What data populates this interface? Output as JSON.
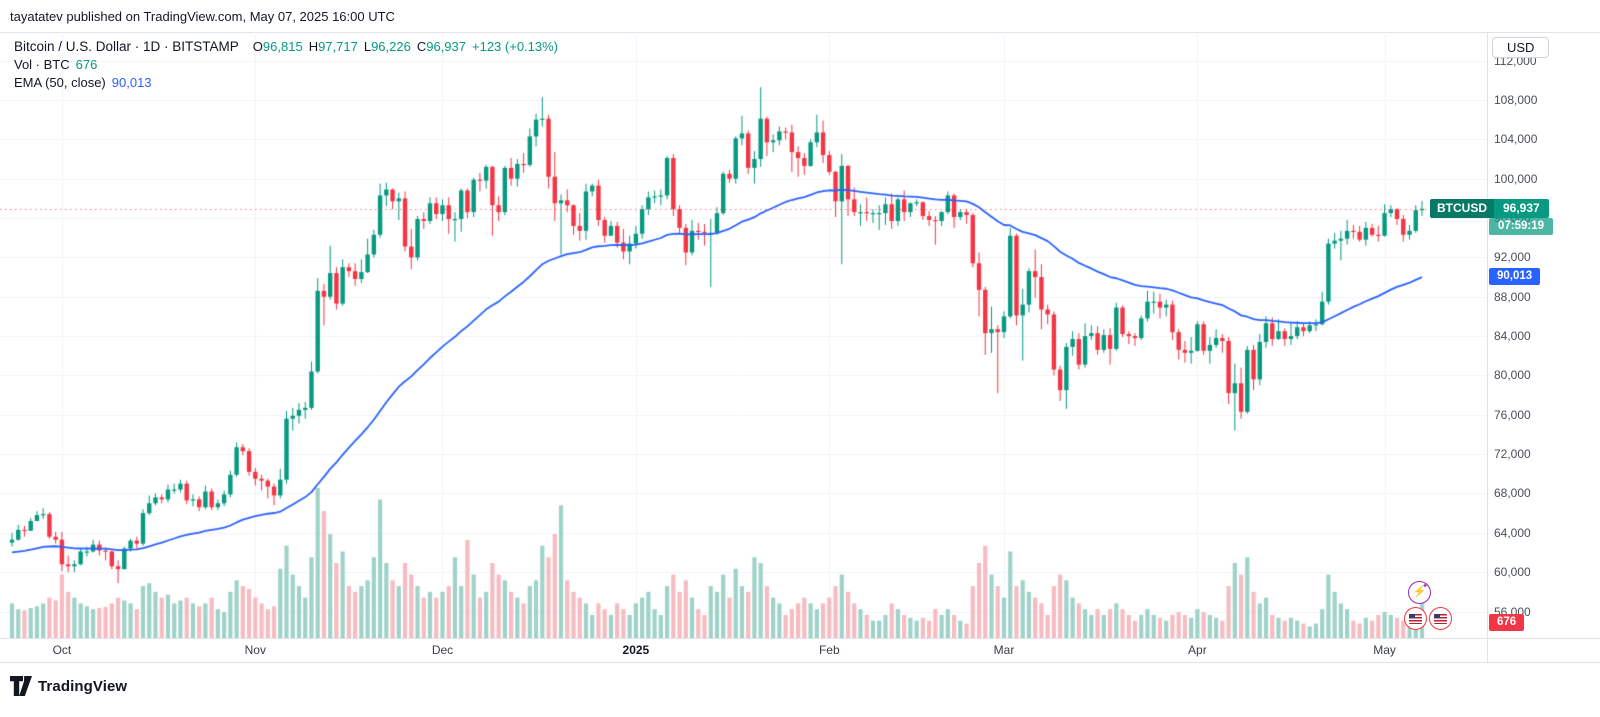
{
  "attribution": "tayatatev published on TradingView.com, May 07, 2025 16:00 UTC",
  "legend": {
    "title": "Bitcoin / U.S. Dollar · 1D · BITSTAMP",
    "open_label": "O",
    "open": "96,815",
    "high_label": "H",
    "high": "97,717",
    "low_label": "L",
    "low": "96,226",
    "close_label": "C",
    "close": "96,937",
    "change": "+123 (+0.13%)",
    "vol_label": "Vol · BTC",
    "vol_value": "676",
    "ema_label": "EMA (50, close)",
    "ema_value": "90,013"
  },
  "axis": {
    "currency_label": "USD"
  },
  "badges": {
    "symbol": "BTCUSD",
    "price": "96,937",
    "countdown": "07:59:19",
    "ema": "90,013",
    "volume": "676"
  },
  "footer": {
    "logo_text": "TradingView"
  },
  "colors": {
    "up": "#089981",
    "down": "#f23645",
    "ema": "#2962ff",
    "vol_up": "#9fd2c8",
    "vol_down": "#f5bcc1",
    "grid": "#f0f3fa",
    "axis_text": "#4a4e59",
    "price_line": "rgba(242,54,69,0.65)",
    "badge_price_bg": "#089981",
    "badge_ema_bg": "#2962ff",
    "badge_vol_bg": "#f23645"
  },
  "chart_data": {
    "type": "candlestick",
    "symbol": "BTCUSD",
    "exchange": "BITSTAMP",
    "interval": "1D",
    "title": "Bitcoin / U.S. Dollar",
    "last_price": 96937,
    "price_change": "+123 (+0.13%)",
    "ohlc_today": {
      "open": 96815,
      "high": 97717,
      "low": 96226,
      "close": 96937
    },
    "volume_today": 676,
    "ema_period": 50,
    "ema_last": 90013,
    "ema_start": 62000,
    "first_open": 63000,
    "ylim": [
      53500,
      114900
    ],
    "y_ticks": [
      112000,
      108000,
      104000,
      100000,
      96000,
      92000,
      88000,
      84000,
      80000,
      76000,
      72000,
      68000,
      64000,
      60000,
      56000
    ],
    "months": [
      {
        "label": "Oct",
        "index": 8
      },
      {
        "label": "Nov",
        "index": 39
      },
      {
        "label": "Dec",
        "index": 69
      },
      {
        "label": "2025",
        "index": 100,
        "year": true
      },
      {
        "label": "Feb",
        "index": 131
      },
      {
        "label": "Mar",
        "index": 159
      },
      {
        "label": "Apr",
        "index": 190
      },
      {
        "label": "May",
        "index": 220
      }
    ],
    "closes": [
      63300,
      64300,
      64200,
      65200,
      65800,
      65900,
      63600,
      63300,
      60800,
      60600,
      60800,
      62100,
      62100,
      62800,
      62200,
      62100,
      60600,
      60300,
      62400,
      63200,
      62900,
      66000,
      67000,
      67600,
      67400,
      68400,
      68400,
      69000,
      67300,
      67400,
      66600,
      68200,
      66600,
      67000,
      67900,
      69900,
      72700,
      72300,
      70200,
      69500,
      69300,
      68700,
      67800,
      69400,
      75600,
      75900,
      76500,
      76700,
      80400,
      88600,
      88000,
      90400,
      87300,
      91000,
      90600,
      89800,
      90500,
      92300,
      94300,
      98300,
      98900,
      97700,
      98000,
      93100,
      92000,
      95900,
      95700,
      97500,
      96400,
      97300,
      95900,
      95900,
      98800,
      96600,
      99900,
      99800,
      101200,
      97300,
      96600,
      101100,
      100000,
      101500,
      101400,
      104300,
      106000,
      106100,
      100200,
      97500,
      97800,
      97300,
      95200,
      94700,
      98700,
      99300,
      95800,
      94200,
      95200,
      93500,
      92600,
      93400,
      94400,
      96900,
      98100,
      98200,
      98300,
      102100,
      96900,
      95000,
      92500,
      94700,
      94600,
      94500,
      94500,
      96500,
      100500,
      100000,
      104100,
      104600,
      101100,
      102000,
      106100,
      103700,
      103900,
      104800,
      104700,
      102700,
      102100,
      101300,
      103700,
      104700,
      102400,
      100700,
      97700,
      101300,
      97900,
      96600,
      96600,
      96500,
      96500,
      96500,
      97400,
      95700,
      97900,
      96600,
      97500,
      97600,
      96200,
      95800,
      95700,
      96600,
      98300,
      96100,
      96600,
      96300,
      91400,
      88700,
      84300,
      84700,
      84400,
      86000,
      94200,
      86100,
      87200,
      90600,
      90000,
      86700,
      86200,
      80600,
      78500,
      82900,
      83700,
      81100,
      84000,
      84300,
      82600,
      84100,
      82700,
      86900,
      84200,
      84000,
      83800,
      85800,
      87500,
      87500,
      86900,
      87200,
      84400,
      82600,
      82300,
      82500,
      85200,
      82500,
      83100,
      83800,
      83500,
      78200,
      79200,
      76300,
      82600,
      79600,
      83400,
      85300,
      83700,
      84500,
      83700,
      84000,
      84900,
      84500,
      85100,
      85200,
      87500,
      93400,
      93700,
      93900,
      94700,
      94600,
      93800,
      95000,
      94300,
      94200,
      96500,
      96900,
      95900,
      94300,
      94700,
      96800,
      96937
    ],
    "highs": [
      64000,
      64800,
      64700,
      65500,
      66200,
      66500,
      66100,
      64100,
      64100,
      61700,
      61200,
      62400,
      62600,
      63300,
      63200,
      62500,
      62200,
      61200,
      62600,
      63400,
      63600,
      66400,
      67800,
      68000,
      67900,
      68900,
      69000,
      69400,
      69300,
      67900,
      67700,
      68800,
      68500,
      67400,
      68300,
      70300,
      73200,
      73000,
      72600,
      70600,
      69900,
      69500,
      69000,
      70500,
      76400,
      76700,
      77200,
      77300,
      81400,
      89900,
      89300,
      93200,
      91000,
      91800,
      91400,
      91400,
      91800,
      93900,
      94800,
      99500,
      99600,
      99000,
      98600,
      98700,
      94900,
      96200,
      96600,
      98100,
      98100,
      97900,
      98100,
      96600,
      99000,
      99000,
      100100,
      100600,
      101400,
      101300,
      98200,
      101300,
      102100,
      102000,
      102600,
      105100,
      106600,
      108300,
      106500,
      102700,
      98400,
      98900,
      97400,
      96500,
      99500,
      99500,
      99900,
      96100,
      95700,
      95600,
      94900,
      94200,
      95200,
      97300,
      98700,
      98800,
      98900,
      102300,
      102500,
      97300,
      95400,
      95800,
      95500,
      95400,
      95900,
      97100,
      100700,
      100900,
      104300,
      106400,
      104900,
      102800,
      109300,
      106300,
      104500,
      105300,
      105200,
      105500,
      103300,
      102600,
      104000,
      106500,
      105900,
      102800,
      100800,
      102500,
      101400,
      99100,
      97400,
      98100,
      96900,
      97300,
      98100,
      98500,
      98100,
      98800,
      97600,
      97900,
      97700,
      96700,
      96200,
      96700,
      98700,
      98500,
      96900,
      96900,
      96500,
      92500,
      89000,
      87000,
      85100,
      86500,
      95000,
      94400,
      88800,
      90900,
      92800,
      91300,
      87200,
      86500,
      81000,
      83300,
      84500,
      84300,
      85300,
      85100,
      85000,
      84700,
      84800,
      87400,
      87100,
      84500,
      84300,
      86100,
      88600,
      88500,
      88300,
      87700,
      87600,
      84700,
      83500,
      83900,
      85500,
      85500,
      83900,
      84700,
      84200,
      83900,
      81200,
      80800,
      83000,
      83100,
      84200,
      86000,
      85900,
      85700,
      84800,
      85400,
      85500,
      85300,
      85500,
      85700,
      88500,
      93900,
      94500,
      94700,
      95800,
      95300,
      95200,
      95600,
      95400,
      95200,
      97400,
      97300,
      97000,
      96300,
      95300,
      97300,
      97717
    ],
    "lows": [
      62600,
      63200,
      63600,
      64500,
      65200,
      65400,
      63400,
      62900,
      60100,
      60000,
      60000,
      60700,
      61600,
      62000,
      61700,
      61200,
      60300,
      58900,
      60300,
      62100,
      62400,
      62700,
      65800,
      66800,
      67000,
      67100,
      68000,
      68100,
      66900,
      66700,
      66200,
      66400,
      66300,
      66300,
      66700,
      67600,
      69700,
      71900,
      69800,
      68800,
      68300,
      67500,
      66800,
      67500,
      69000,
      74400,
      75100,
      75600,
      76500,
      80200,
      85100,
      87700,
      86700,
      87100,
      90000,
      89100,
      89400,
      90400,
      92000,
      94000,
      97200,
      96900,
      95800,
      92600,
      90800,
      91700,
      94900,
      95400,
      95900,
      95700,
      94400,
      93600,
      94600,
      96000,
      96100,
      98700,
      99000,
      94200,
      95700,
      96300,
      99300,
      99200,
      100600,
      101200,
      103300,
      105300,
      99000,
      95700,
      92300,
      96600,
      94300,
      93700,
      93800,
      98200,
      95200,
      93500,
      94200,
      93000,
      91800,
      91300,
      92900,
      93900,
      96300,
      97500,
      97300,
      97900,
      96200,
      94400,
      91200,
      92200,
      93800,
      93200,
      89000,
      94300,
      96300,
      99600,
      99500,
      103400,
      100500,
      99500,
      101200,
      102300,
      102700,
      103400,
      104000,
      100700,
      100200,
      100400,
      101200,
      103200,
      101600,
      100400,
      96100,
      91300,
      96200,
      96200,
      95200,
      95700,
      95500,
      94800,
      95300,
      94900,
      95200,
      95700,
      96100,
      97200,
      95800,
      95200,
      93300,
      95200,
      96400,
      95000,
      95800,
      95400,
      91000,
      86000,
      82100,
      82300,
      78200,
      83800,
      85800,
      85100,
      81500,
      86400,
      87900,
      84700,
      85200,
      80000,
      77400,
      76600,
      82000,
      80600,
      80800,
      83600,
      82100,
      82300,
      81100,
      82500,
      83900,
      83200,
      83000,
      83600,
      85500,
      86300,
      85800,
      86000,
      83600,
      81600,
      81300,
      81200,
      82400,
      82100,
      81200,
      82800,
      82300,
      77100,
      74400,
      75600,
      76100,
      78500,
      79000,
      82800,
      83000,
      83600,
      83000,
      83100,
      83700,
      84000,
      84300,
      84500,
      85100,
      87200,
      92900,
      91700,
      93300,
      93900,
      93600,
      93200,
      94100,
      93600,
      94100,
      96100,
      95300,
      93600,
      93800,
      94500,
      96226
    ],
    "volumes": [
      600,
      500,
      480,
      520,
      550,
      600,
      700,
      650,
      1100,
      800,
      700,
      600,
      550,
      500,
      520,
      540,
      600,
      700,
      650,
      600,
      500,
      900,
      950,
      800,
      700,
      750,
      600,
      650,
      700,
      600,
      550,
      600,
      700,
      500,
      450,
      800,
      1000,
      900,
      850,
      700,
      600,
      500,
      550,
      1200,
      1600,
      1100,
      900,
      700,
      1400,
      2600,
      2200,
      1800,
      1300,
      1500,
      900,
      800,
      900,
      1000,
      1400,
      2400,
      1300,
      1000,
      900,
      1300,
      1100,
      900,
      700,
      800,
      700,
      800,
      900,
      1400,
      900,
      1700,
      1100,
      700,
      800,
      1300,
      1100,
      1000,
      800,
      700,
      600,
      900,
      1000,
      1600,
      1400,
      1800,
      2300,
      1000,
      800,
      700,
      600,
      400,
      600,
      500,
      400,
      600,
      500,
      400,
      600,
      700,
      800,
      500,
      400,
      900,
      1100,
      800,
      1000,
      700,
      500,
      400,
      900,
      800,
      1100,
      700,
      1200,
      900,
      800,
      1400,
      1300,
      900,
      700,
      600,
      400,
      500,
      600,
      700,
      600,
      500,
      600,
      700,
      900,
      1100,
      800,
      600,
      500,
      400,
      300,
      300,
      400,
      600,
      500,
      400,
      350,
      300,
      350,
      300,
      500,
      400,
      500,
      400,
      300,
      250,
      900,
      1300,
      1600,
      1100,
      900,
      700,
      1500,
      900,
      1000,
      800,
      700,
      600,
      400,
      900,
      1100,
      1000,
      700,
      600,
      500,
      400,
      500,
      400,
      500,
      600,
      500,
      400,
      300,
      400,
      500,
      400,
      350,
      300,
      400,
      450,
      400,
      350,
      500,
      450,
      400,
      350,
      300,
      900,
      1300,
      1100,
      1400,
      800,
      600,
      700,
      400,
      350,
      300,
      350,
      300,
      250,
      200,
      250,
      500,
      1100,
      800,
      600,
      500,
      300,
      250,
      350,
      300,
      400,
      450,
      400,
      350,
      300,
      350,
      500,
      676
    ]
  }
}
